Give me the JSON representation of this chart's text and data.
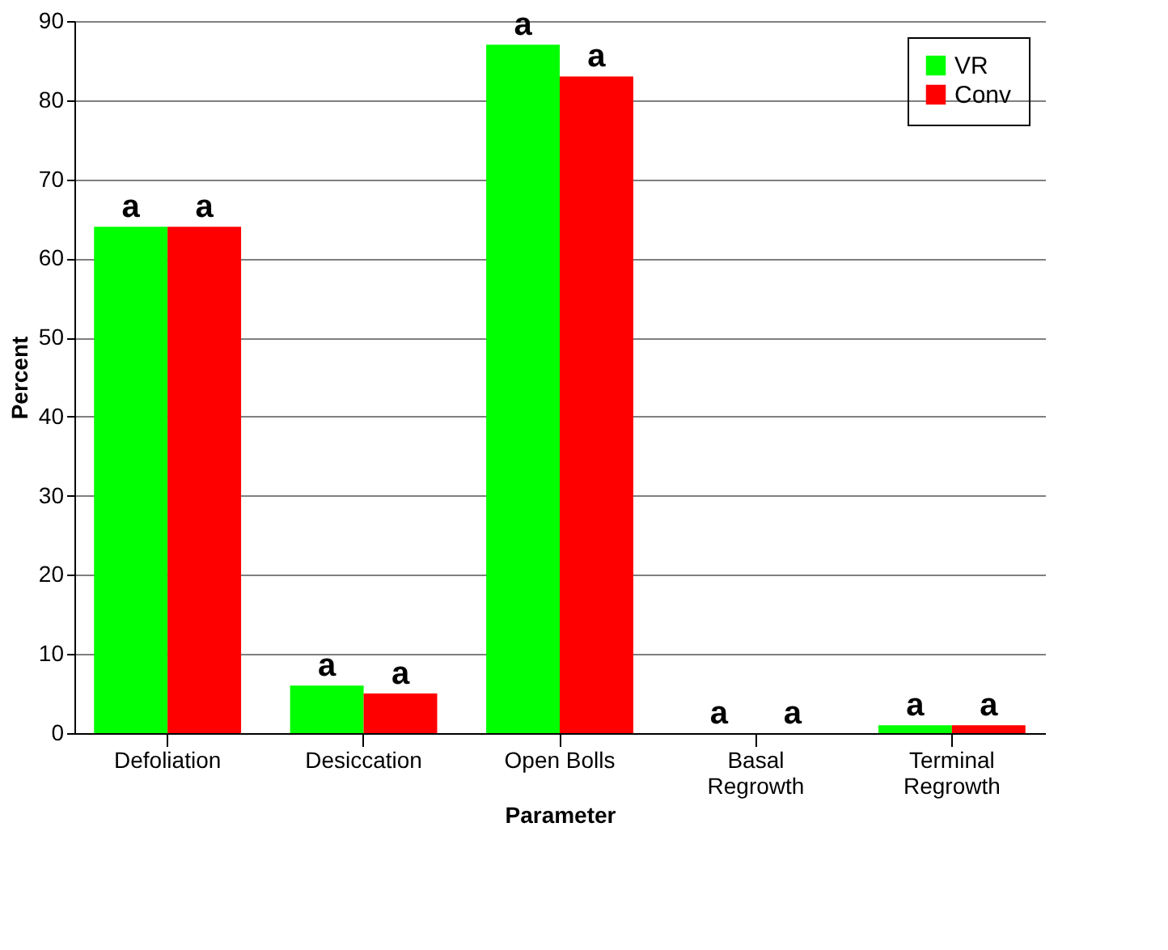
{
  "chart_data": {
    "type": "bar",
    "xlabel": "Parameter",
    "ylabel": "Percent",
    "categories": [
      "Defoliation",
      "Desiccation",
      "Open Bolls",
      "Basal\nRegrowth",
      "Terminal\nRegrowth"
    ],
    "series": [
      {
        "name": "VR",
        "color": "#00ff00",
        "values": [
          64,
          6,
          87,
          0,
          1
        ]
      },
      {
        "name": "Conv",
        "color": "#ff0000",
        "values": [
          64,
          5,
          83,
          0,
          1
        ]
      }
    ],
    "ylim": [
      0,
      90
    ],
    "yticks": [
      0,
      10,
      20,
      30,
      40,
      50,
      60,
      70,
      80,
      90
    ],
    "grid": "y",
    "legend": "top right",
    "annotations": [
      {
        "text": "a",
        "x": "Defoliation",
        "y": 64
      },
      {
        "text": "a",
        "x": "Defoliation",
        "y": 64
      },
      {
        "text": "a",
        "x": "Desiccation",
        "y": 6
      },
      {
        "text": "a",
        "x": "Desiccation",
        "y": 5
      },
      {
        "text": "a",
        "x": "Open Bolls",
        "y": 87
      },
      {
        "text": "a",
        "x": "Open Bolls",
        "y": 83
      },
      {
        "text": "a",
        "x": "Basal\nRegrowth",
        "y": 0
      },
      {
        "text": "a",
        "x": "Basal\nRegrowth",
        "y": 0
      },
      {
        "text": "a",
        "x": "Terminal\nRegrowth",
        "y": 1
      },
      {
        "text": "a",
        "x": "Terminal\nRegrowth",
        "y": 1
      }
    ]
  }
}
